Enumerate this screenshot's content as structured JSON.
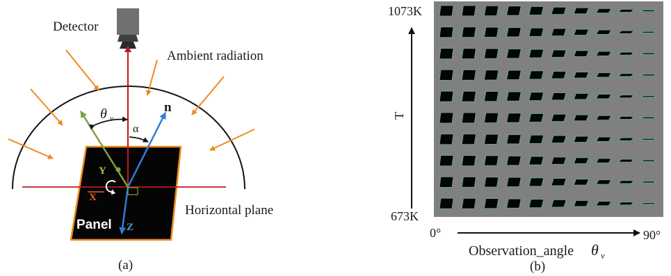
{
  "panel_a": {
    "detector": "Detector",
    "ambient": "Ambient radiation",
    "theta_symbol": "θ",
    "theta_sub": "v",
    "alpha": "α",
    "normal": "n",
    "axis_y": "Y",
    "axis_x": "X",
    "axis_z": "Z",
    "panel": "Panel",
    "horizontal": "Horizontal plane",
    "caption": "(a)"
  },
  "panel_b": {
    "t_max": "1073K",
    "t_min": "673K",
    "t_axis": "T",
    "angle_min": "0°",
    "angle_max": "90°",
    "x_axis": "Observation_angle",
    "theta_symbol": "θ",
    "theta_sub": "v",
    "caption": "(b)",
    "grid": {
      "rows": 10,
      "cols": 10
    }
  },
  "colors": {
    "red_axis": "#c0181f",
    "orange_arrow": "#ee8a1c",
    "green_vector": "#7ea23e",
    "blue_vector": "#2f7fd6",
    "panel_fill": "#050505",
    "panel_border": "#f08a1c",
    "grid_bg": "#808080"
  }
}
